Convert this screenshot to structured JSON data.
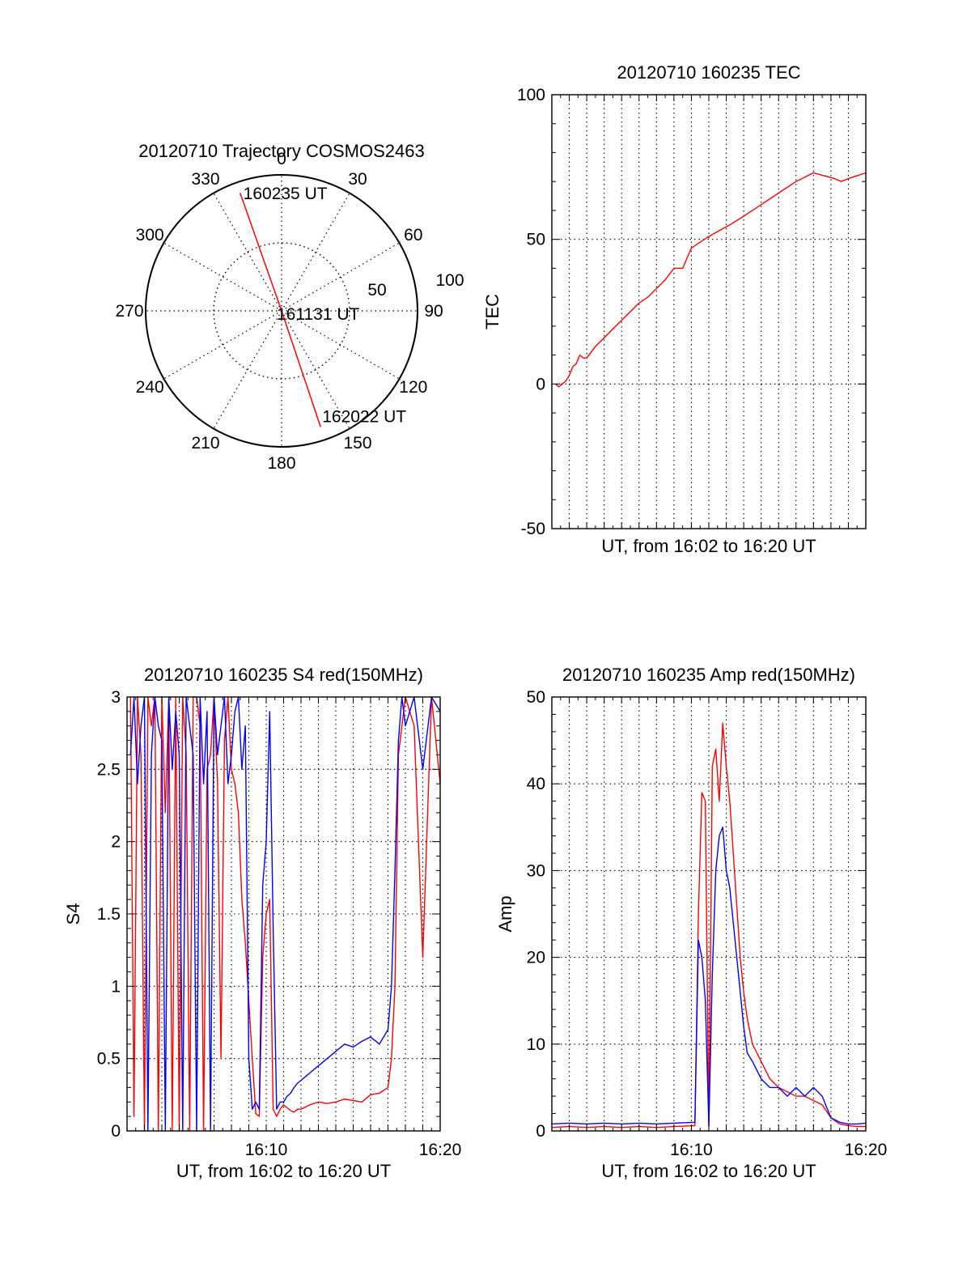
{
  "colors": {
    "red": "#ff0000",
    "blue": "#0000ff",
    "axis": "#000000",
    "grid": "#000000"
  },
  "chart_data": [
    {
      "type": "polar",
      "title": "20120710 Trajectory COSMOS2463",
      "angle_labels": [
        "0",
        "30",
        "60",
        "90",
        "120",
        "150",
        "180",
        "210",
        "240",
        "270",
        "300",
        "330"
      ],
      "radius_labels": [
        "50",
        "100"
      ],
      "radius_values": [
        50,
        100
      ],
      "rmax": 100,
      "series": [
        {
          "color": "#ff0000",
          "points": [
            {
              "az": 340.6,
              "r": 92
            },
            {
              "az": 0,
              "r": 0
            },
            {
              "az": 161.4,
              "r": 90
            }
          ]
        }
      ],
      "annotations": [
        {
          "text": "160235 UT",
          "az": 340.6,
          "r": 92
        },
        {
          "text": "161131 UT",
          "az": 0,
          "r": 0
        },
        {
          "text": "162022 UT",
          "az": 161.4,
          "r": 90
        }
      ]
    },
    {
      "type": "line",
      "title": "20120710 160235 TEC",
      "xlabel": "UT, from 16:02 to 16:20 UT",
      "ylabel": "TEC",
      "xlim": [
        0,
        18
      ],
      "ylim": [
        -50,
        100
      ],
      "yticks": [
        "-50",
        "0",
        "50",
        "100"
      ],
      "ytick_values": [
        -50,
        0,
        50,
        100
      ],
      "series": [
        {
          "color": "#ff0000",
          "x": [
            0.2,
            0.4,
            0.6,
            0.8,
            1.0,
            1.2,
            1.4,
            1.6,
            1.8,
            2.0,
            2.5,
            3.0,
            3.5,
            4.0,
            4.5,
            5.0,
            5.5,
            6.0,
            6.5,
            7.0,
            7.5,
            8.0,
            8.5,
            9.0,
            9.6,
            10.2,
            11.0,
            12.0,
            13.0,
            14.0,
            15.0,
            15.6,
            16.2,
            16.6,
            17.0,
            17.5,
            18.0
          ],
          "y": [
            0,
            -1,
            0,
            1,
            3,
            6,
            7,
            10,
            9,
            9,
            13,
            16,
            19,
            22,
            25,
            28,
            30,
            33,
            36,
            40,
            40,
            47,
            49,
            51,
            53,
            55,
            58,
            62,
            66,
            70,
            73,
            72,
            71,
            70,
            71,
            72,
            73
          ]
        }
      ]
    },
    {
      "type": "line",
      "title": "20120710 160235 S4 red(150MHz)",
      "xlabel": "UT, from 16:02 to 16:20 UT",
      "ylabel": "S4",
      "xlim": [
        0,
        18
      ],
      "ylim": [
        0,
        3
      ],
      "xticks": [
        "16:10",
        "16:20"
      ],
      "xtick_values": [
        8,
        18
      ],
      "yticks": [
        "0",
        "0.5",
        "1",
        "1.5",
        "2",
        "2.5",
        "3"
      ],
      "ytick_values": [
        0,
        0.5,
        1,
        1.5,
        2,
        2.5,
        3
      ],
      "series": [
        {
          "color": "#ff0000",
          "x": [
            0.2,
            0.4,
            0.6,
            0.8,
            1.0,
            1.2,
            1.4,
            1.6,
            1.8,
            2.0,
            2.2,
            2.4,
            2.6,
            2.8,
            3.0,
            3.2,
            3.4,
            3.6,
            3.8,
            4.0,
            4.2,
            4.4,
            4.6,
            4.8,
            5.0,
            5.2,
            5.4,
            5.6,
            5.8,
            6.0,
            6.2,
            6.4,
            6.6,
            6.8,
            7.0,
            7.2,
            7.4,
            7.6,
            7.8,
            8.0,
            8.2,
            8.4,
            8.6,
            8.8,
            9.0,
            9.2,
            9.4,
            9.6,
            9.8,
            10.0,
            10.5,
            11.0,
            11.5,
            12.0,
            12.5,
            13.0,
            13.5,
            14.0,
            14.5,
            15.0,
            15.2,
            15.4,
            15.6,
            15.8,
            16.0,
            16.5,
            17.0,
            17.5,
            18.0
          ],
          "y": [
            3,
            0.1,
            3,
            2.6,
            0,
            3,
            2.8,
            3,
            0,
            3,
            2.2,
            3,
            0,
            3,
            0,
            3,
            2.6,
            0,
            3,
            3,
            2.8,
            0,
            2.5,
            2.6,
            3,
            2.4,
            0.5,
            2.7,
            3,
            2.5,
            2.4,
            2.2,
            1.6,
            1.3,
            0.9,
            0.5,
            0.12,
            0.1,
            1.2,
            1.5,
            1.6,
            0.15,
            0.1,
            0.15,
            0.18,
            0.16,
            0.14,
            0.13,
            0.15,
            0.15,
            0.18,
            0.2,
            0.19,
            0.2,
            0.22,
            0.21,
            0.2,
            0.25,
            0.26,
            0.3,
            0.5,
            1.0,
            2.6,
            2.8,
            3,
            2.8,
            1.2,
            3,
            2.4
          ]
        },
        {
          "color": "#0000ff",
          "x": [
            0.2,
            0.4,
            0.6,
            0.8,
            1.0,
            1.2,
            1.4,
            1.6,
            1.8,
            2.0,
            2.2,
            2.4,
            2.6,
            2.8,
            3.0,
            3.2,
            3.4,
            3.6,
            3.8,
            4.0,
            4.2,
            4.4,
            4.6,
            4.8,
            5.0,
            5.2,
            5.4,
            5.6,
            5.8,
            6.0,
            6.2,
            6.4,
            6.6,
            6.8,
            7.0,
            7.2,
            7.4,
            7.6,
            7.8,
            8.0,
            8.2,
            8.4,
            8.6,
            8.8,
            9.0,
            9.2,
            9.4,
            9.6,
            9.8,
            10.0,
            10.5,
            11.0,
            11.5,
            12.0,
            12.5,
            13.0,
            13.5,
            14.0,
            14.5,
            15.0,
            15.2,
            15.4,
            15.6,
            15.8,
            16.0,
            16.5,
            17.0,
            17.5,
            18.0
          ],
          "y": [
            2.6,
            3,
            2.4,
            2.8,
            3,
            0,
            2.6,
            3,
            2.8,
            2.7,
            0,
            3,
            2.5,
            2.9,
            2.6,
            0,
            3,
            2.8,
            2.6,
            0,
            3,
            2.4,
            2.9,
            0,
            3,
            2.6,
            2.8,
            3,
            2.4,
            2.6,
            2.9,
            3,
            2.5,
            2.8,
            0.5,
            0.15,
            0.2,
            0.15,
            1.7,
            2.0,
            2.9,
            1.4,
            0.15,
            0.2,
            0.2,
            0.24,
            0.26,
            0.3,
            0.33,
            0.35,
            0.4,
            0.45,
            0.5,
            0.55,
            0.6,
            0.58,
            0.62,
            0.65,
            0.6,
            0.7,
            1.0,
            1.8,
            2.7,
            3,
            2.8,
            3,
            2.5,
            3,
            2.9
          ]
        }
      ]
    },
    {
      "type": "line",
      "title": "20120710 160235 Amp red(150MHz)",
      "xlabel": "UT, from 16:02 to 16:20 UT",
      "ylabel": "Amp",
      "xlim": [
        0,
        18
      ],
      "ylim": [
        0,
        50
      ],
      "xticks": [
        "16:10",
        "16:20"
      ],
      "xtick_values": [
        8,
        18
      ],
      "yticks": [
        "0",
        "10",
        "20",
        "30",
        "40",
        "50"
      ],
      "ytick_values": [
        0,
        10,
        20,
        30,
        40,
        50
      ],
      "series": [
        {
          "color": "#ff0000",
          "x": [
            0,
            1,
            2,
            3,
            4,
            5,
            6,
            7,
            8.2,
            8.4,
            8.6,
            8.8,
            9.0,
            9.2,
            9.4,
            9.6,
            9.8,
            10.0,
            10.2,
            10.4,
            10.6,
            10.8,
            11.0,
            11.2,
            11.5,
            12.0,
            12.5,
            13.0,
            13.5,
            14.0,
            14.5,
            15.0,
            15.5,
            16.0,
            16.5,
            17.0,
            17.5,
            18.0
          ],
          "y": [
            0.4,
            0.5,
            0.4,
            0.5,
            0.4,
            0.5,
            0.4,
            0.5,
            0.6,
            25,
            39,
            38,
            0.5,
            42,
            44,
            38,
            47,
            42,
            38,
            32,
            26,
            20,
            16,
            13,
            10,
            8,
            6,
            5,
            4.5,
            4,
            4,
            3.5,
            3,
            1.5,
            0.8,
            0.6,
            0.5,
            0.5
          ]
        },
        {
          "color": "#0000ff",
          "x": [
            0,
            1,
            2,
            3,
            4,
            5,
            6,
            7,
            8.2,
            8.4,
            8.6,
            8.8,
            9.0,
            9.2,
            9.4,
            9.6,
            9.8,
            10.0,
            10.2,
            10.4,
            10.6,
            10.8,
            11.0,
            11.2,
            11.5,
            12.0,
            12.5,
            13.0,
            13.5,
            14.0,
            14.5,
            15.0,
            15.5,
            16.0,
            16.5,
            17.0,
            17.5,
            18.0
          ],
          "y": [
            0.8,
            0.9,
            0.8,
            0.9,
            0.8,
            0.9,
            0.8,
            0.9,
            1.0,
            22,
            20,
            15,
            0.6,
            18,
            30,
            34,
            35,
            30,
            28,
            24,
            20,
            16,
            12,
            9,
            8,
            6,
            5,
            5,
            4,
            5,
            4,
            5,
            4,
            1.5,
            1.0,
            0.8,
            0.8,
            0.9
          ]
        }
      ]
    }
  ]
}
